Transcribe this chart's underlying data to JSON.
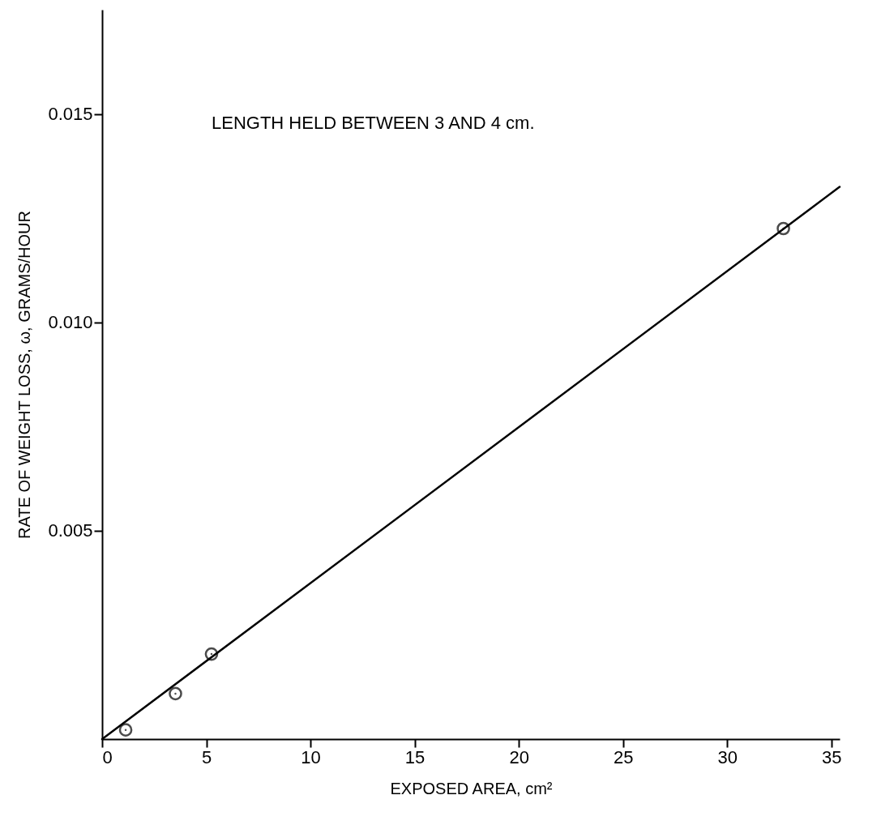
{
  "chart_data": {
    "type": "scatter",
    "xlabel": "EXPOSED AREA, cm²",
    "ylabel": "RATE OF WEIGHT LOSS, ω, GRAMS/HOUR",
    "annotations": [
      "LENGTH HELD BETWEEN 3 AND 4 cm."
    ],
    "xlim": [
      0,
      35.4
    ],
    "xticks": [
      0,
      5,
      10,
      15,
      20,
      25,
      30,
      35
    ],
    "ylim": [
      0,
      0.0175
    ],
    "yticks": [
      {
        "value": 0.005,
        "label": "0.005"
      },
      {
        "value": 0.01,
        "label": "0.010"
      },
      {
        "value": 0.015,
        "label": "0.015"
      }
    ],
    "grid": false,
    "series": [
      {
        "marker": "circle",
        "color": "#000000",
        "x": [
          1.13,
          3.52,
          5.25,
          32.7
        ],
        "values": [
          0.00022,
          0.00109,
          0.00204,
          0.01225
        ]
      },
      {
        "type": "line",
        "marker": "none",
        "color": "#000000",
        "x": [
          0,
          35.4
        ],
        "values": [
          0,
          0.01325
        ]
      }
    ]
  }
}
